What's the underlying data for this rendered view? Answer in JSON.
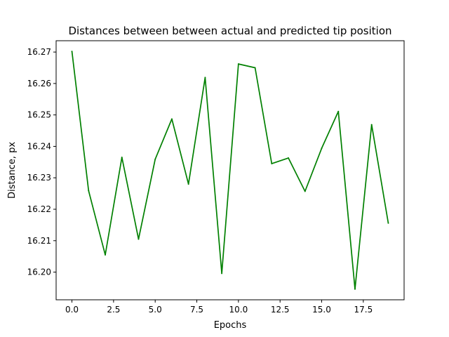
{
  "chart_data": {
    "type": "line",
    "title": "Distances between between actual and predicted tip position",
    "xlabel": "Epochs",
    "ylabel": "Distance, px",
    "xlim": [
      -0.95,
      19.95
    ],
    "ylim": [
      16.1912,
      16.2736
    ],
    "x_ticks": [
      0.0,
      2.5,
      5.0,
      7.5,
      10.0,
      12.5,
      15.0,
      17.5
    ],
    "x_tick_labels": [
      "0.0",
      "2.5",
      "5.0",
      "7.5",
      "10.0",
      "12.5",
      "15.0",
      "17.5"
    ],
    "y_ticks": [
      16.2,
      16.21,
      16.22,
      16.23,
      16.24,
      16.25,
      16.26,
      16.27
    ],
    "y_tick_labels": [
      "16.20",
      "16.21",
      "16.22",
      "16.23",
      "16.24",
      "16.25",
      "16.26",
      "16.27"
    ],
    "grid": false,
    "series": [
      {
        "color": "#008000",
        "x": [
          0,
          1,
          2,
          3,
          4,
          5,
          6,
          7,
          8,
          9,
          10,
          11,
          12,
          13,
          14,
          15,
          16,
          17,
          18,
          19
        ],
        "values": [
          16.2702,
          16.2259,
          16.2055,
          16.2365,
          16.2105,
          16.2359,
          16.2487,
          16.228,
          16.2619,
          16.1996,
          16.2662,
          16.265,
          16.2345,
          16.2363,
          16.2257,
          16.2394,
          16.2511,
          16.1946,
          16.2469,
          16.2156
        ]
      }
    ]
  }
}
